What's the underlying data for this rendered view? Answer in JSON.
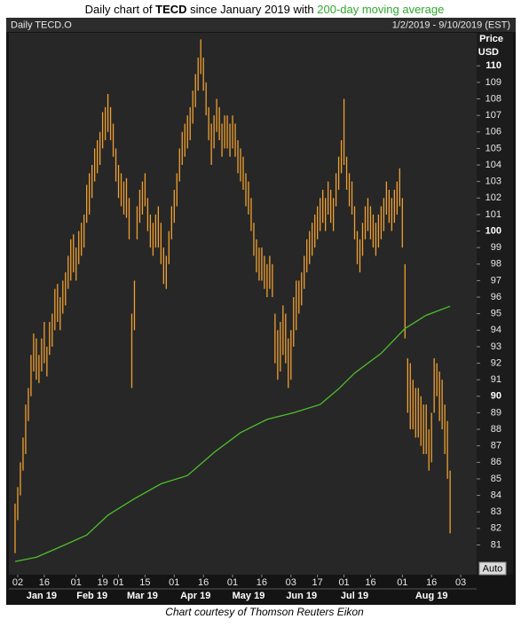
{
  "chart_data": {
    "type": "stock",
    "title_parts": [
      "Daily chart of ",
      "TECD",
      " since January 2019 with ",
      "200-day moving average"
    ],
    "panel_label": "Daily TECD.O",
    "date_range": "1/2/2019 - 9/10/2019 (EST)",
    "y_label": [
      "Price",
      "USD"
    ],
    "auto_button": "Auto",
    "caption": "Chart courtesy of Thomson Reuters Eikon",
    "xlim": [
      -1,
      174
    ],
    "ylim": [
      79.2,
      112
    ],
    "yticks": [
      81,
      82,
      83,
      84,
      85,
      86,
      87,
      88,
      89,
      90,
      91,
      92,
      93,
      94,
      95,
      96,
      97,
      98,
      99,
      100,
      101,
      102,
      103,
      104,
      105,
      106,
      107,
      108,
      109,
      110
    ],
    "xticks": [
      {
        "value": 1,
        "label": "02"
      },
      {
        "value": 11,
        "label": "16"
      },
      {
        "value": 23,
        "label": "01"
      },
      {
        "value": 33,
        "label": "19"
      },
      {
        "value": 39,
        "label": "01"
      },
      {
        "value": 49,
        "label": "15"
      },
      {
        "value": 60,
        "label": "01"
      },
      {
        "value": 71,
        "label": "16"
      },
      {
        "value": 82,
        "label": "01"
      },
      {
        "value": 93,
        "label": "16"
      },
      {
        "value": 104,
        "label": "03"
      },
      {
        "value": 114,
        "label": "17"
      },
      {
        "value": 124,
        "label": "01"
      },
      {
        "value": 134,
        "label": "16"
      },
      {
        "value": 146,
        "label": "01"
      },
      {
        "value": 157,
        "label": "16"
      },
      {
        "value": 168,
        "label": "03"
      }
    ],
    "month_ticks": [
      {
        "value": 10,
        "label": "Jan 19"
      },
      {
        "value": 29,
        "label": "Feb 19"
      },
      {
        "value": 48,
        "label": "Mar 19"
      },
      {
        "value": 68,
        "label": "Apr 19"
      },
      {
        "value": 88,
        "label": "May 19"
      },
      {
        "value": 108,
        "label": "Jun 19"
      },
      {
        "value": 128,
        "label": "Jul 19"
      },
      {
        "value": 157,
        "label": "Aug 19"
      }
    ],
    "price": {
      "color": "#f0a030",
      "high": [
        83.5,
        84.5,
        86,
        87.5,
        89.5,
        90.5,
        92.5,
        93.8,
        93.5,
        92.5,
        93.5,
        94.5,
        93,
        94.5,
        95,
        96.5,
        96.8,
        96,
        97,
        97.5,
        98.5,
        99.5,
        99.8,
        99,
        100,
        100.5,
        101,
        102.8,
        103.5,
        104,
        105,
        105.5,
        106,
        107.2,
        107.5,
        108.3,
        107.5,
        106.5,
        105,
        104,
        103.5,
        103,
        103.2,
        102,
        95,
        97,
        101.5,
        102.5,
        103,
        103.5,
        102,
        101,
        100.5,
        101,
        101.5,
        100.5,
        99,
        98.5,
        100,
        101.5,
        102.5,
        103.5,
        105,
        106,
        106.5,
        107,
        107.5,
        108.5,
        109.5,
        110.5,
        111.6,
        110.5,
        109,
        107.5,
        106.5,
        107,
        108,
        107.5,
        106.5,
        107,
        107,
        106.5,
        107,
        106.5,
        105.5,
        105,
        104.5,
        103.5,
        103,
        102,
        100.5,
        99.5,
        99,
        99,
        98.5,
        98,
        98.5,
        98,
        95,
        94,
        94.5,
        95.5,
        95,
        93.5,
        94,
        96,
        97,
        97,
        97.5,
        98.5,
        99.5,
        100,
        100.5,
        101,
        101.5,
        102,
        102.5,
        102,
        103,
        102.5,
        102,
        103.5,
        104.5,
        105.5,
        108,
        104.5,
        103.5,
        103,
        101.5,
        100,
        99.5,
        100.5,
        101.5,
        102,
        101.5,
        101,
        100.5,
        101,
        101.5,
        102,
        103,
        102.5,
        102,
        102.5,
        103,
        103.8,
        102,
        98,
        92.3,
        92,
        91,
        90.5,
        90.5,
        90,
        89.5,
        89.5,
        88,
        89,
        92.3,
        92,
        91.5,
        91,
        89.5,
        88.5,
        85.5
      ],
      "low": [
        80.5,
        82.5,
        84,
        85.5,
        86.5,
        88.5,
        90,
        91.5,
        91,
        90.8,
        91.5,
        92,
        91.2,
        92.5,
        93,
        94,
        94.5,
        94,
        95,
        95.5,
        96.5,
        97,
        97.5,
        97,
        98,
        98.5,
        99,
        100.5,
        101,
        102,
        103,
        103.5,
        104,
        105,
        105.5,
        106,
        105.5,
        104.5,
        103,
        102,
        101.5,
        101,
        100.8,
        99.5,
        90.5,
        94,
        99.5,
        100.5,
        101,
        101.5,
        100,
        99,
        98.5,
        99,
        99,
        98,
        96.8,
        96.5,
        98,
        99.5,
        100.5,
        101.5,
        103,
        104,
        104.5,
        105,
        105.5,
        106.5,
        107.5,
        108.5,
        109.5,
        108.5,
        107,
        105.5,
        104,
        105,
        106,
        105.5,
        104.5,
        105,
        105,
        104.5,
        105,
        104.5,
        103.5,
        103,
        102.5,
        101.5,
        101,
        100,
        98.5,
        97.5,
        97,
        97,
        96.5,
        96,
        96.5,
        96,
        92,
        91,
        91.5,
        92.5,
        92,
        90.5,
        91,
        93,
        94,
        95,
        95.5,
        96.5,
        97.5,
        98,
        98.5,
        99,
        99.5,
        100,
        100.5,
        100,
        101,
        100.5,
        100,
        101.5,
        102.5,
        103.5,
        104,
        102.5,
        101.5,
        101,
        99.5,
        98,
        97.5,
        98.5,
        99.5,
        100,
        99.5,
        99,
        98.5,
        99,
        99.5,
        100,
        101,
        100.5,
        100,
        100.5,
        101,
        101.5,
        99,
        93.5,
        89,
        88,
        88,
        87.5,
        87.5,
        87,
        86.5,
        86.5,
        85.5,
        86,
        89,
        90,
        88.5,
        88,
        86.5,
        85,
        81.7
      ]
    },
    "moving_average": {
      "color": "#4ec02a",
      "x": [
        0,
        8,
        18,
        27,
        35,
        45,
        55,
        65,
        75,
        85,
        95,
        105,
        115,
        122,
        128,
        138,
        147,
        155,
        164
      ],
      "values": [
        80.0,
        80.25,
        80.95,
        81.6,
        82.8,
        83.8,
        84.7,
        85.2,
        86.6,
        87.8,
        88.6,
        89.0,
        89.5,
        90.45,
        91.4,
        92.6,
        94.1,
        94.9,
        95.45
      ]
    }
  }
}
